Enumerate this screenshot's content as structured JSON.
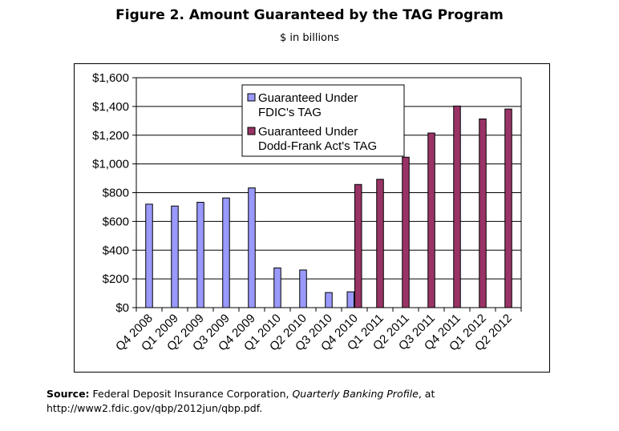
{
  "figure": {
    "title": "Figure 2. Amount Guaranteed by the TAG Program",
    "subtitle": "$ in billions"
  },
  "source": {
    "label": "Source:",
    "text_before": " Federal Deposit Insurance Corporation, ",
    "publication": "Quarterly Banking Profile",
    "text_after": ", at http://www2.fdic.gov/qbp/2012jun/qbp.pdf."
  },
  "chart_data": {
    "type": "bar",
    "title": "Figure 2. Amount Guaranteed by the TAG Program",
    "subtitle": "$ in billions",
    "categories": [
      "Q4 2008",
      "Q1 2009",
      "Q2 2009",
      "Q3 2009",
      "Q4 2009",
      "Q1 2010",
      "Q2 2010",
      "Q3 2010",
      "Q4 2010",
      "Q1 2011",
      "Q2 2011",
      "Q3 2011",
      "Q4 2011",
      "Q1 2012",
      "Q2 2012"
    ],
    "series": [
      {
        "name": "Guaranteed Under FDIC's TAG",
        "color": "#9999ff",
        "values": [
          720,
          707,
          733,
          763,
          833,
          276,
          262,
          105,
          110,
          null,
          null,
          null,
          null,
          null,
          null
        ]
      },
      {
        "name": "Guaranteed Under Dodd-Frank Act's TAG",
        "color": "#993366",
        "values": [
          null,
          null,
          null,
          null,
          null,
          null,
          null,
          null,
          857,
          893,
          1047,
          1215,
          1403,
          1313,
          1382
        ]
      }
    ],
    "ylim": [
      0,
      1600
    ],
    "yticks": [
      0,
      200,
      400,
      600,
      800,
      1000,
      1200,
      1400,
      1600
    ],
    "ytick_labels": [
      "$0",
      "$200",
      "$400",
      "$600",
      "$800",
      "$1,000",
      "$1,200",
      "$1,400",
      "$1,600"
    ],
    "legend_lines": [
      [
        "Guaranteed Under",
        "FDIC's TAG"
      ],
      [
        "Guaranteed Under",
        "Dodd-Frank Act's TAG"
      ]
    ],
    "legend_position": "top-center",
    "grid": true
  }
}
